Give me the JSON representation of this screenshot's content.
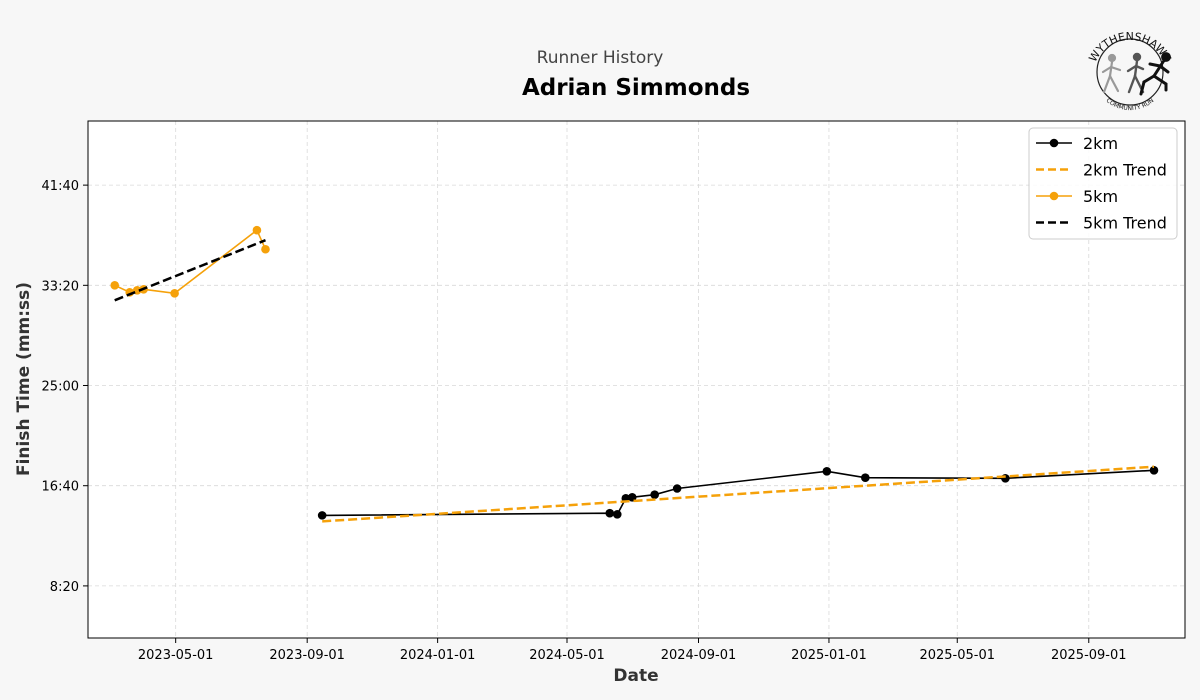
{
  "header": {
    "suptitle": "Runner History",
    "title": "Adrian Simmonds"
  },
  "logo": {
    "top_text": "WYTHENSHAWE",
    "bottom_text": "COMMUNITY RUN"
  },
  "chart_data": {
    "type": "line",
    "xlabel": "Date",
    "ylabel": "Finish Time (mm:ss)",
    "x_type": "date",
    "y_type": "duration_seconds",
    "xlim": [
      "2023-02-08",
      "2025-11-30"
    ],
    "ylim": [
      240,
      2820
    ],
    "x_ticks": [
      "2023-05-01",
      "2023-09-01",
      "2024-01-01",
      "2024-05-01",
      "2024-09-01",
      "2025-01-01",
      "2025-05-01",
      "2025-09-01"
    ],
    "y_ticks": [
      500,
      1000,
      1500,
      2000,
      2500
    ],
    "y_tick_labels": [
      "8:20",
      "16:40",
      "25:00",
      "33:20",
      "41:40"
    ],
    "grid": true,
    "legend_position": "top-right",
    "series": [
      {
        "name": "2km",
        "kind": "data",
        "color": "#000000",
        "style": "solid",
        "marker": true,
        "points": [
          [
            "2023-09-15",
            852
          ],
          [
            "2024-06-10",
            863
          ],
          [
            "2024-06-17",
            857
          ],
          [
            "2024-06-25",
            937
          ],
          [
            "2024-07-01",
            942
          ],
          [
            "2024-07-22",
            955
          ],
          [
            "2024-08-12",
            986
          ],
          [
            "2024-12-30",
            1072
          ],
          [
            "2025-02-04",
            1040
          ],
          [
            "2025-06-15",
            1037
          ],
          [
            "2025-11-01",
            1077
          ]
        ]
      },
      {
        "name": "2km Trend",
        "kind": "trend",
        "color": "#f5a10a",
        "style": "dashed",
        "marker": false,
        "points": [
          [
            "2023-09-15",
            822
          ],
          [
            "2025-11-01",
            1095
          ]
        ]
      },
      {
        "name": "5km",
        "kind": "data",
        "color": "#f5a10a",
        "style": "solid",
        "marker": true,
        "points": [
          [
            "2023-03-05",
            2000
          ],
          [
            "2023-03-19",
            1965
          ],
          [
            "2023-03-26",
            1975
          ],
          [
            "2023-04-01",
            1980
          ],
          [
            "2023-04-30",
            1960
          ],
          [
            "2023-07-16",
            2275
          ],
          [
            "2023-07-24",
            2180
          ]
        ]
      },
      {
        "name": "5km Trend",
        "kind": "trend",
        "color": "#000000",
        "style": "dashed",
        "marker": false,
        "points": [
          [
            "2023-03-05",
            1925
          ],
          [
            "2023-07-24",
            2225
          ]
        ]
      }
    ]
  }
}
